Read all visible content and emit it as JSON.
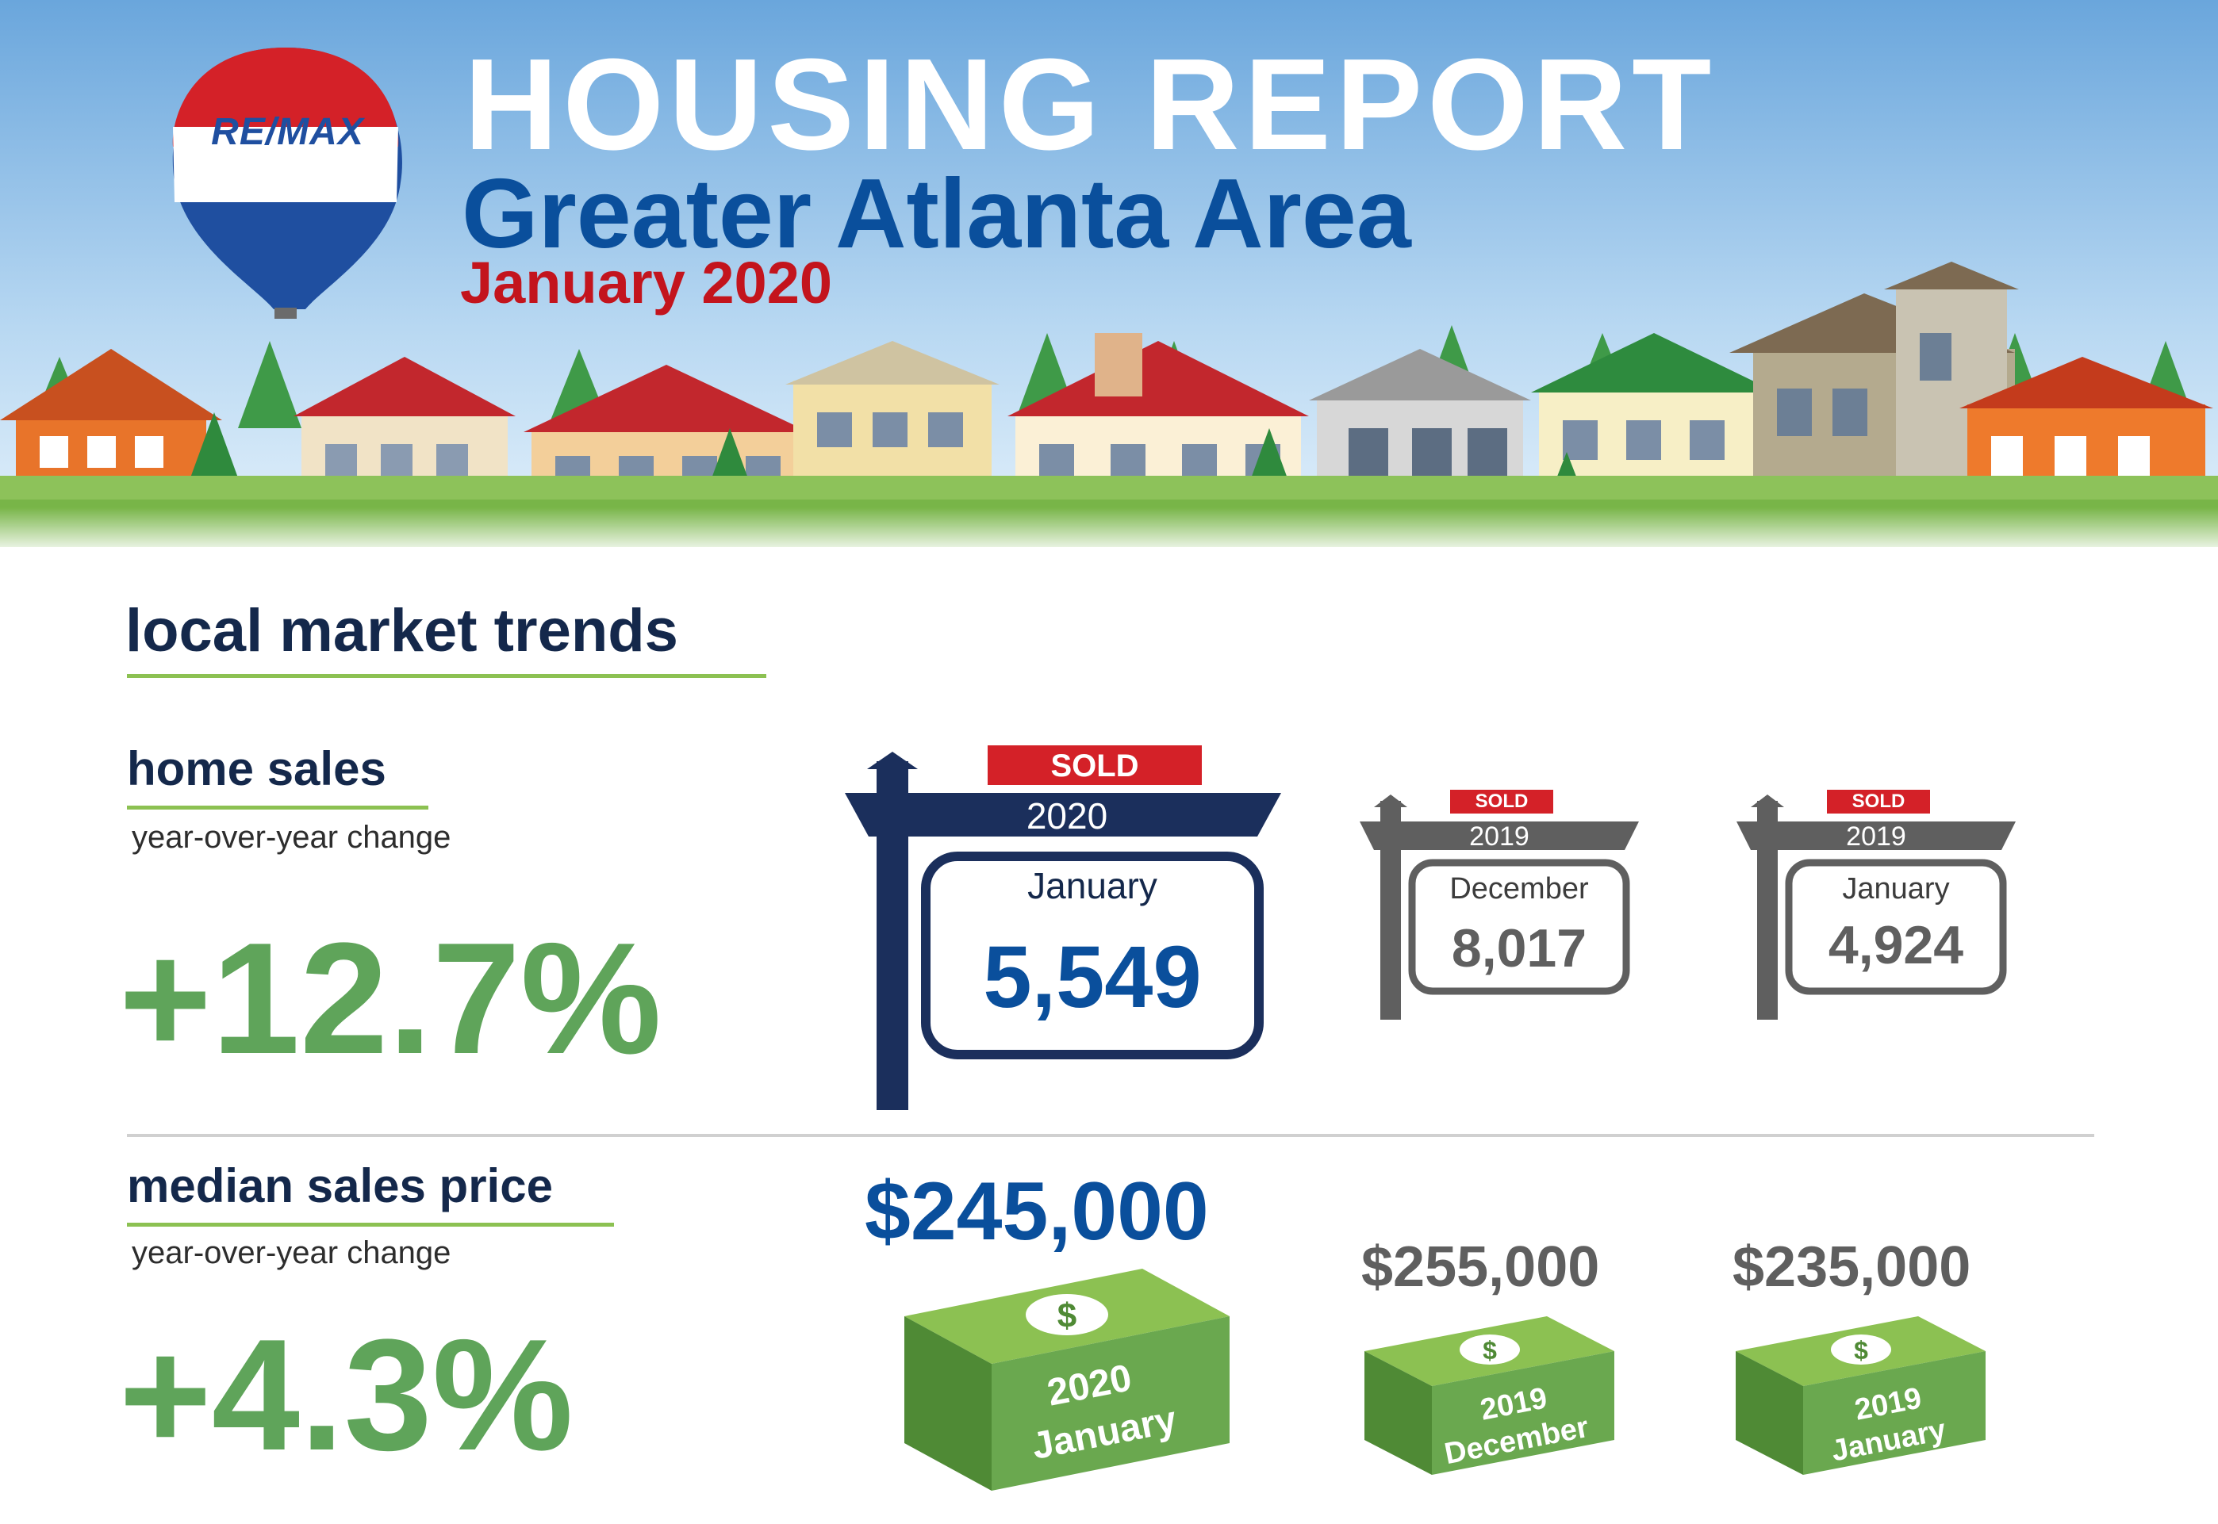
{
  "header": {
    "logo_text": "RE/MAX",
    "title": "HOUSING REPORT",
    "subtitle": "Greater Atlanta Area",
    "period": "January 2020"
  },
  "section_title": "local market trends",
  "home_sales": {
    "heading": "home sales",
    "sublabel": "year-over-year change",
    "change": "+12.7%",
    "signs": [
      {
        "badge": "SOLD",
        "year": "2020",
        "month": "January",
        "value": "5,549"
      },
      {
        "badge": "SOLD",
        "year": "2019",
        "month": "December",
        "value": "8,017"
      },
      {
        "badge": "SOLD",
        "year": "2019",
        "month": "January",
        "value": "4,924"
      }
    ]
  },
  "median_price": {
    "heading": "median sales price",
    "sublabel": "year-over-year change",
    "change": "+4.3%",
    "items": [
      {
        "price": "$245,000",
        "year": "2020",
        "month": "January"
      },
      {
        "price": "$255,000",
        "year": "2019",
        "month": "December"
      },
      {
        "price": "$235,000",
        "year": "2019",
        "month": "January"
      }
    ]
  },
  "colors": {
    "navy": "#1b2f5c",
    "blue": "#0a4f9c",
    "red": "#c3141d",
    "green": "#5fa45a",
    "grey": "#5f5f5f",
    "money_green": "#6aa84f"
  }
}
